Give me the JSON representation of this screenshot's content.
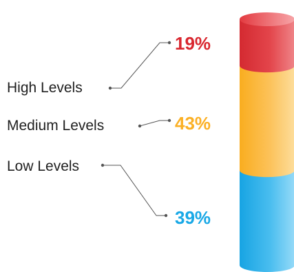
{
  "chart_data": {
    "type": "bar",
    "layout": "stacked-cylinder",
    "categories": [
      "High Levels",
      "Medium Levels",
      "Low Levels"
    ],
    "values": [
      19,
      43,
      39
    ],
    "value_labels": [
      "19%",
      "43%",
      "39%"
    ],
    "colors": [
      "#d9262e",
      "#fbb025",
      "#19a8e6"
    ],
    "legend": "left",
    "grid": false
  }
}
